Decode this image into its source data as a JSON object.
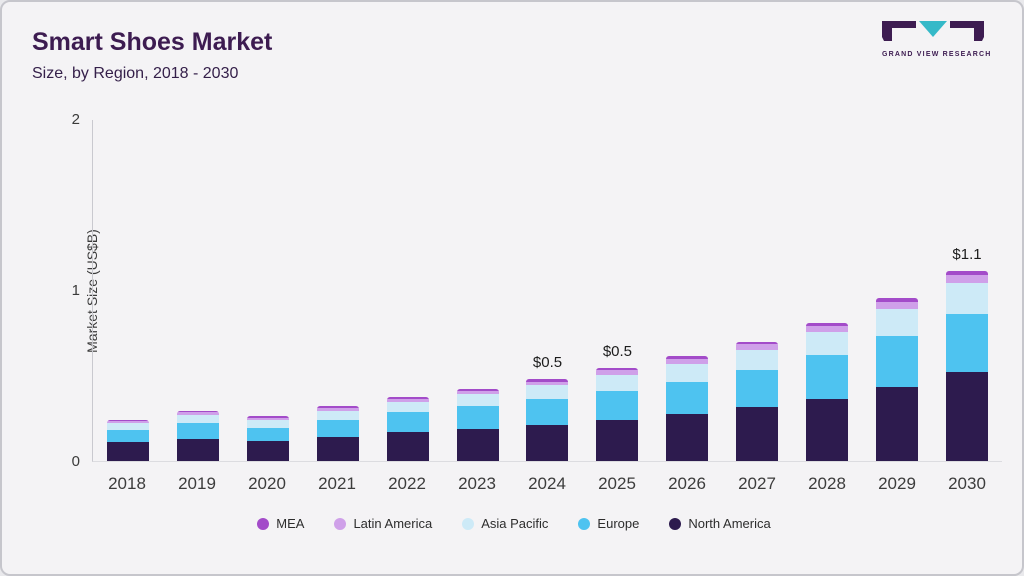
{
  "header": {
    "title": "Smart Shoes Market",
    "subtitle": "Size, by Region, 2018 - 2030"
  },
  "logo": {
    "text": "GRAND VIEW RESEARCH",
    "dark_color": "#3d1c51",
    "teal_color": "#35b9c8"
  },
  "chart_data": {
    "type": "bar",
    "stacked": true,
    "title": "Smart Shoes Market Size, by Region, 2018 - 2030",
    "ylabel": "Market Size (US$B)",
    "xlabel": "",
    "ylim": [
      0,
      2
    ],
    "yticks": [
      0,
      1,
      2
    ],
    "grid": false,
    "legend_position": "bottom",
    "categories": [
      "2018",
      "2019",
      "2020",
      "2021",
      "2022",
      "2023",
      "2024",
      "2025",
      "2026",
      "2027",
      "2028",
      "2029",
      "2030"
    ],
    "series": [
      {
        "name": "North America",
        "color": "#2d1b4e",
        "values": [
          0.11,
          0.13,
          0.115,
          0.14,
          0.17,
          0.19,
          0.21,
          0.24,
          0.275,
          0.315,
          0.365,
          0.43,
          0.52
        ]
      },
      {
        "name": "Europe",
        "color": "#4ec3f0",
        "values": [
          0.07,
          0.09,
          0.08,
          0.1,
          0.115,
          0.13,
          0.15,
          0.17,
          0.19,
          0.22,
          0.255,
          0.3,
          0.34
        ]
      },
      {
        "name": "Asia Pacific",
        "color": "#cdeaf7",
        "values": [
          0.04,
          0.05,
          0.045,
          0.055,
          0.062,
          0.072,
          0.082,
          0.095,
          0.105,
          0.115,
          0.135,
          0.16,
          0.18
        ]
      },
      {
        "name": "Latin America",
        "color": "#cfa0e9",
        "values": [
          0.013,
          0.015,
          0.014,
          0.016,
          0.018,
          0.02,
          0.023,
          0.026,
          0.029,
          0.032,
          0.036,
          0.042,
          0.048
        ]
      },
      {
        "name": "MEA",
        "color": "#a34bc9",
        "values": [
          0.007,
          0.008,
          0.007,
          0.009,
          0.01,
          0.011,
          0.012,
          0.014,
          0.015,
          0.017,
          0.019,
          0.022,
          0.025
        ]
      }
    ],
    "annotations": [
      {
        "category": "2024",
        "text": "$0.5"
      },
      {
        "category": "2025",
        "text": "$0.5"
      },
      {
        "category": "2030",
        "text": "$1.1"
      }
    ],
    "legend_order": [
      "MEA",
      "Latin America",
      "Asia Pacific",
      "Europe",
      "North America"
    ]
  }
}
